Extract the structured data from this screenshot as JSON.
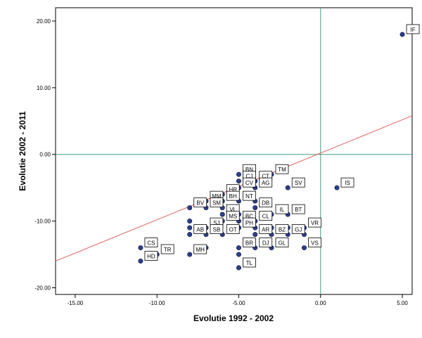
{
  "chart_data": {
    "type": "scatter",
    "xlabel": "Evolutie 1992 - 2002",
    "ylabel": "Evolutie 2002 - 2011",
    "xlim": [
      -16.2,
      5.6
    ],
    "ylim": [
      -21.0,
      22.0
    ],
    "x_ticks": [
      {
        "value": -15,
        "label": "-15.00"
      },
      {
        "value": -10,
        "label": "-10.00"
      },
      {
        "value": -5,
        "label": "-5.00"
      },
      {
        "value": 0,
        "label": "0.00"
      },
      {
        "value": 5,
        "label": "5.00"
      }
    ],
    "y_ticks": [
      {
        "value": 20,
        "label": "20.00"
      },
      {
        "value": 10,
        "label": "10.00"
      },
      {
        "value": 0,
        "label": "0.00"
      },
      {
        "value": -10,
        "label": "-10.00"
      },
      {
        "value": -20,
        "label": "-20.00"
      }
    ],
    "reference_lines": {
      "x": 0,
      "y": 0,
      "color": "#3c9e78"
    },
    "fit_line": {
      "color": "#e06060",
      "intercept": 0.2,
      "slope": 1.0
    },
    "point_color": "#2c3e8c",
    "points": [
      {
        "label": "IF",
        "x": 5.0,
        "y": 18.0
      },
      {
        "label": "IS",
        "x": 1.0,
        "y": -5.0
      },
      {
        "label": "BN",
        "x": -5.0,
        "y": -3.0
      },
      {
        "label": "CJ",
        "x": -5.0,
        "y": -4.0
      },
      {
        "label": "TM",
        "x": -3.0,
        "y": -3.0
      },
      {
        "label": "CT",
        "x": -4.0,
        "y": -4.0
      },
      {
        "label": "CV",
        "x": -5.0,
        "y": -5.0
      },
      {
        "label": "HR",
        "x": -6.0,
        "y": -6.0
      },
      {
        "label": "SV",
        "x": -2.0,
        "y": -5.0
      },
      {
        "label": "MM",
        "x": -7.0,
        "y": -7.0
      },
      {
        "label": "BH",
        "x": -6.0,
        "y": -7.0
      },
      {
        "label": "AG",
        "x": -4.0,
        "y": -5.0
      },
      {
        "label": "NT",
        "x": -5.0,
        "y": -7.0
      },
      {
        "label": "SM",
        "x": -7.0,
        "y": -8.0
      },
      {
        "label": "DB",
        "x": -4.0,
        "y": -8.0
      },
      {
        "label": "BV",
        "x": -8.0,
        "y": -8.0
      },
      {
        "label": "VL",
        "x": -6.0,
        "y": -9.0
      },
      {
        "label": "MS",
        "x": -6.0,
        "y": -10.0
      },
      {
        "label": "BT",
        "x": -2.0,
        "y": -9.0
      },
      {
        "label": "IL",
        "x": -3.0,
        "y": -9.0
      },
      {
        "label": "BC",
        "x": -5.0,
        "y": -10.0
      },
      {
        "label": "CL",
        "x": -4.0,
        "y": -10.0
      },
      {
        "label": "VR",
        "x": -1.0,
        "y": -11.0
      },
      {
        "label": "SJ",
        "x": -7.0,
        "y": -11.0
      },
      {
        "label": "PH",
        "x": -5.0,
        "y": -11.0
      },
      {
        "label": "AB",
        "x": -8.0,
        "y": -12.0
      },
      {
        "label": "SB",
        "x": -7.0,
        "y": -12.0
      },
      {
        "label": "OT",
        "x": -6.0,
        "y": -12.0
      },
      {
        "label": "AR",
        "x": -4.0,
        "y": -12.0
      },
      {
        "label": "BZ",
        "x": -3.0,
        "y": -12.0
      },
      {
        "label": "GJ",
        "x": -2.0,
        "y": -12.0
      },
      {
        "label": "CS",
        "x": -11.0,
        "y": -14.0
      },
      {
        "label": "TR",
        "x": -10.0,
        "y": -15.0
      },
      {
        "label": "BR",
        "x": -5.0,
        "y": -14.0
      },
      {
        "label": "DJ",
        "x": -4.0,
        "y": -14.0
      },
      {
        "label": "GL",
        "x": -3.0,
        "y": -14.0
      },
      {
        "label": "VS",
        "x": -1.0,
        "y": -14.0
      },
      {
        "label": "HD",
        "x": -11.0,
        "y": -16.0
      },
      {
        "label": "MH",
        "x": -8.0,
        "y": -15.0
      },
      {
        "label": "TL",
        "x": -5.0,
        "y": -17.0
      },
      {
        "label": "",
        "x": -8.0,
        "y": -10.0
      },
      {
        "label": "",
        "x": -8.0,
        "y": -11.0
      },
      {
        "label": "",
        "x": -7.0,
        "y": -14.0
      },
      {
        "label": "",
        "x": -5.0,
        "y": -15.0
      },
      {
        "label": "",
        "x": -4.0,
        "y": -11.0
      },
      {
        "label": "",
        "x": -4.0,
        "y": -7.0
      },
      {
        "label": "",
        "x": -3.0,
        "y": -11.0
      },
      {
        "label": "",
        "x": -3.0,
        "y": -14.0
      },
      {
        "label": "",
        "x": -2.0,
        "y": -11.0
      },
      {
        "label": "",
        "x": -1.0,
        "y": -12.0
      },
      {
        "label": "",
        "x": -5.0,
        "y": -9.0
      },
      {
        "label": "",
        "x": -6.0,
        "y": -8.0
      }
    ]
  }
}
